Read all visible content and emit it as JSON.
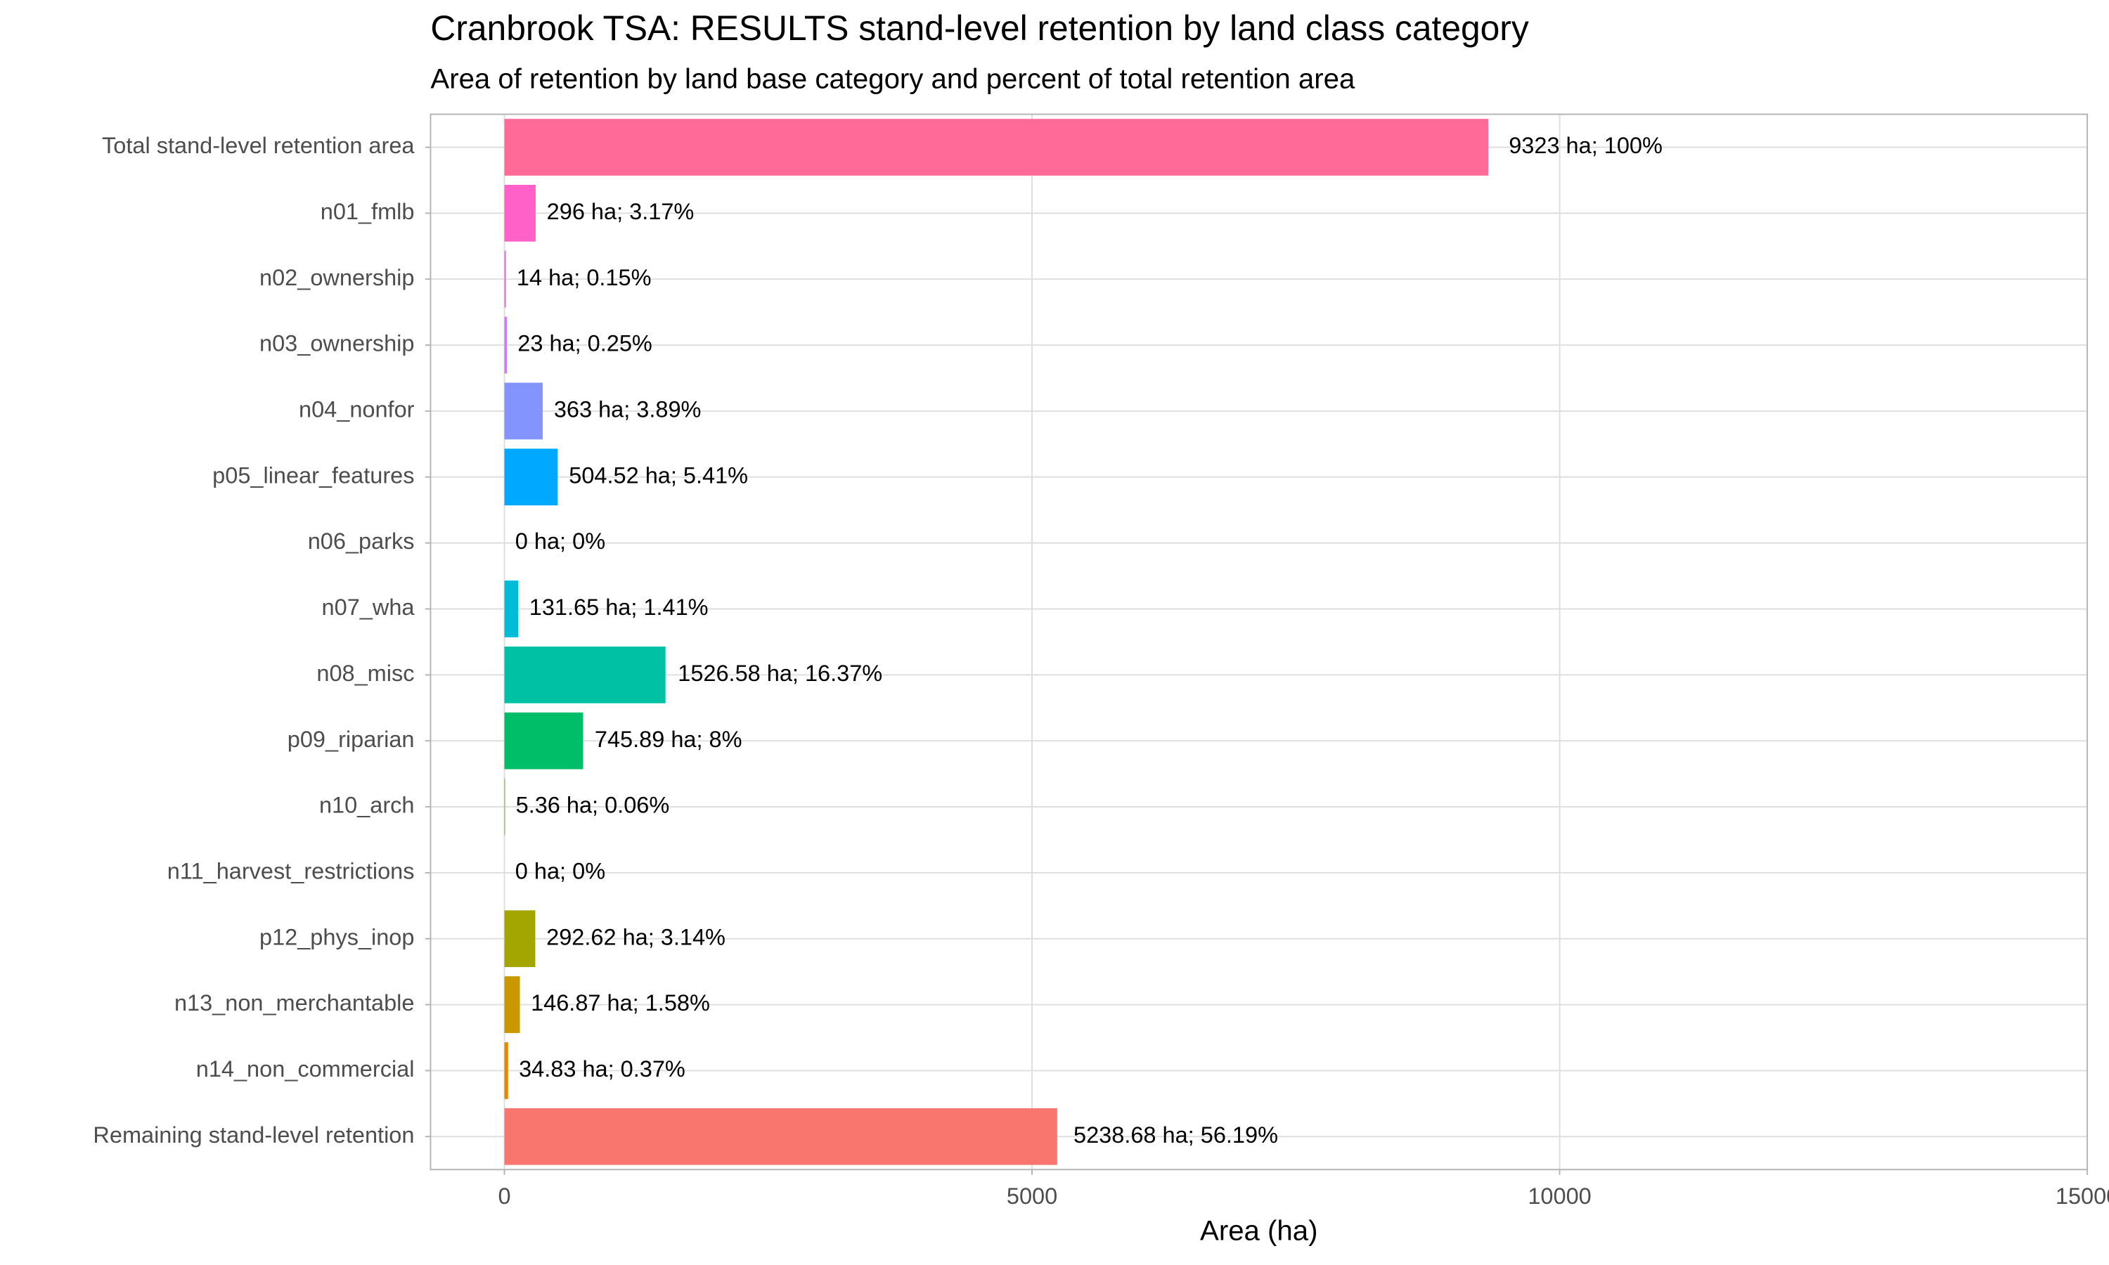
{
  "chart_data": {
    "type": "bar",
    "orientation": "horizontal",
    "title": "Cranbrook TSA: RESULTS stand-level retention by land class category",
    "subtitle": "Area of retention by land base category and percent of total retention area",
    "x_label": "Area (ha)",
    "categories": [
      "Total stand-level retention area",
      "n01_fmlb",
      "n02_ownership",
      "n03_ownership",
      "n04_nonfor",
      "p05_linear_features",
      "n06_parks",
      "n07_wha",
      "n08_misc",
      "p09_riparian",
      "n10_arch",
      "n11_harvest_restrictions",
      "p12_phys_inop",
      "n13_non_merchantable",
      "n14_non_commercial",
      "Remaining stand-level retention"
    ],
    "values": [
      9323,
      296,
      14,
      23,
      363,
      504.52,
      0,
      131.65,
      1526.58,
      745.89,
      5.36,
      0,
      292.62,
      146.87,
      34.83,
      5238.68
    ],
    "value_labels": [
      "9323 ha; 100%",
      "296 ha; 3.17%",
      "14 ha; 0.15%",
      "23 ha; 0.25%",
      "363 ha; 3.89%",
      "504.52 ha; 5.41%",
      "0 ha; 0%",
      "131.65 ha; 1.41%",
      "1526.58 ha; 16.37%",
      "745.89 ha; 8%",
      "5.36 ha; 0.06%",
      "0 ha; 0%",
      "292.62 ha; 3.14%",
      "146.87 ha; 1.58%",
      "34.83 ha; 0.37%",
      "5238.68 ha; 56.19%"
    ],
    "colors": [
      "#FF6A98",
      "#FF61C9",
      "#F564E3",
      "#C77CFF",
      "#8494FF",
      "#00A9FF",
      "#00B8E7",
      "#00BCD8",
      "#00C1A3",
      "#00BE67",
      "#53B400",
      "#6BB100",
      "#A3A500",
      "#C99800",
      "#E58700",
      "#F8766D"
    ],
    "xlim": [
      -700,
      15000
    ],
    "xticks": [
      0,
      5000,
      10000,
      15000
    ],
    "grid": true
  }
}
